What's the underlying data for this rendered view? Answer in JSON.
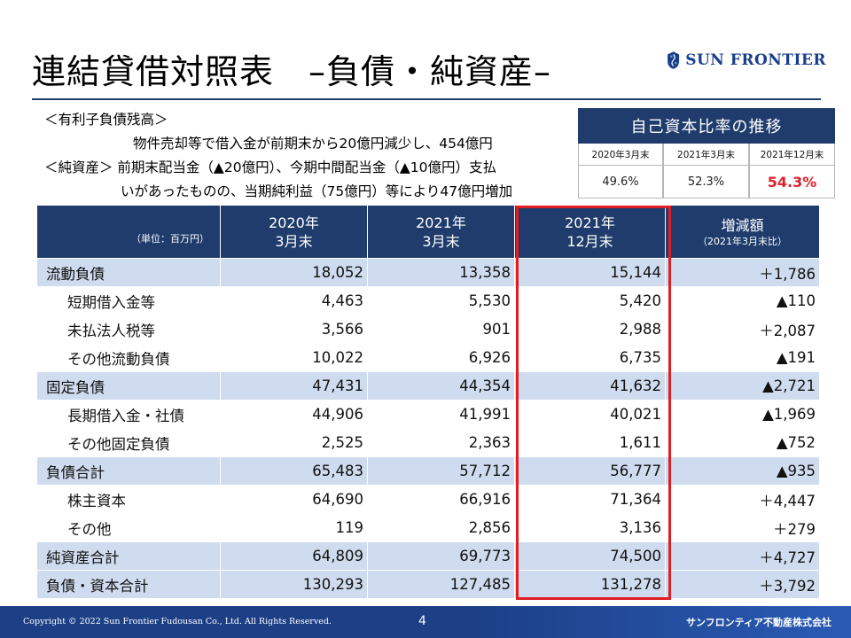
{
  "title": "連結貸借対照表　–負債・純資産–",
  "logo": {
    "text": "SUN FRONTIER"
  },
  "notes": {
    "line1": "＜有利子負債残高＞",
    "line2": "物件売却等で借入金が前期末から20億円減少し、454億円",
    "line3": "＜純資産＞ 前期末配当金（▲20億円）、今期中間配当金（▲10億円）支払",
    "line4": "いがあったものの、当期純利益（75億円）等により47億円増加"
  },
  "equity_ratio": {
    "header": "自己資本比率の推移",
    "labels": [
      "2020年3月末",
      "2021年3月末",
      "2021年12月末"
    ],
    "values": [
      "49.6%",
      "52.3%",
      "54.3%"
    ],
    "highlight_color": "#e0202a"
  },
  "table": {
    "unit": "（単位：百万円）",
    "col1": {
      "line1": "2020年",
      "line2": "3月末"
    },
    "col2": {
      "line1": "2021年",
      "line2": "3月末"
    },
    "col3": {
      "line1": "2021年",
      "line2": "12月末"
    },
    "col4": {
      "line1": "増減額",
      "line2": "（2021年3月末比）"
    },
    "rows": [
      {
        "label": "流動負債",
        "v1": "18,052",
        "v2": "13,358",
        "v3": "15,144",
        "v4": "＋1,786"
      },
      {
        "label": "短期借入金等",
        "v1": "4,463",
        "v2": "5,530",
        "v3": "5,420",
        "v4": "▲110"
      },
      {
        "label": "未払法人税等",
        "v1": "3,566",
        "v2": "901",
        "v3": "2,988",
        "v4": "＋2,087"
      },
      {
        "label": "その他流動負債",
        "v1": "10,022",
        "v2": "6,926",
        "v3": "6,735",
        "v4": "▲191"
      },
      {
        "label": "固定負債",
        "v1": "47,431",
        "v2": "44,354",
        "v3": "41,632",
        "v4": "▲2,721"
      },
      {
        "label": "長期借入金・社債",
        "v1": "44,906",
        "v2": "41,991",
        "v3": "40,021",
        "v4": "▲1,969"
      },
      {
        "label": "その他固定負債",
        "v1": "2,525",
        "v2": "2,363",
        "v3": "1,611",
        "v4": "▲752"
      },
      {
        "label": "負債合計",
        "v1": "65,483",
        "v2": "57,712",
        "v3": "56,777",
        "v4": "▲935"
      },
      {
        "label": "株主資本",
        "v1": "64,690",
        "v2": "66,916",
        "v3": "71,364",
        "v4": "＋4,447"
      },
      {
        "label": "その他",
        "v1": "119",
        "v2": "2,856",
        "v3": "3,136",
        "v4": "＋279"
      },
      {
        "label": "純資産合計",
        "v1": "64,809",
        "v2": "69,773",
        "v3": "74,500",
        "v4": "＋4,727"
      },
      {
        "label": "負債・資本合計",
        "v1": "130,293",
        "v2": "127,485",
        "v3": "131,278",
        "v4": "＋3,792"
      }
    ]
  },
  "colors": {
    "header_navy": "#1f3c6c",
    "row_blue": "#cfdbee",
    "frame_red": "#e11d24"
  },
  "footer": {
    "copyright": "Copyright © 2022 Sun Frontier Fudousan Co., Ltd. All Rights Reserved.",
    "page": "4",
    "company": "サンフロンティア不動産株式会社"
  }
}
